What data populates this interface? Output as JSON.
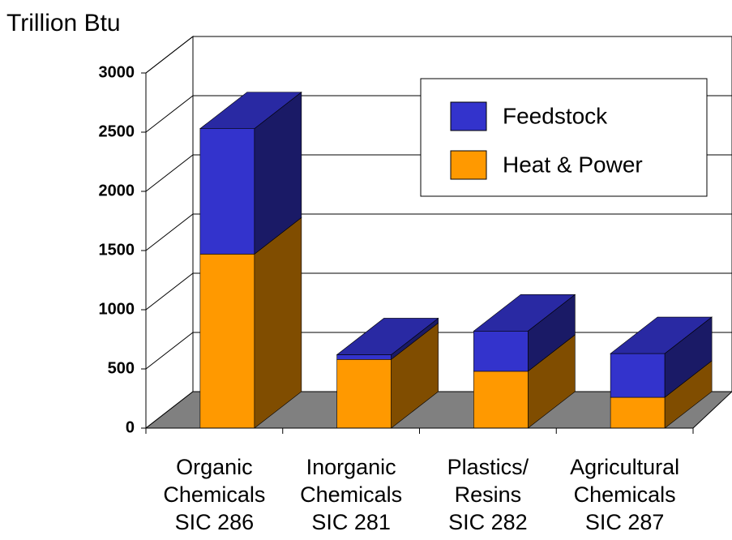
{
  "chart_data": {
    "type": "bar3d_stacked",
    "y_axis_label": "Trillion Btu",
    "categories": [
      [
        "Organic",
        "Chemicals",
        "SIC 286"
      ],
      [
        "Inorganic",
        "Chemicals",
        "SIC 281"
      ],
      [
        "Plastics/",
        "Resins",
        "SIC 282"
      ],
      [
        "Agricultural",
        "Chemicals",
        "SIC 287"
      ]
    ],
    "series": [
      {
        "name": "Heat & Power",
        "color": "#ff9900",
        "values": [
          1470,
          580,
          480,
          260
        ]
      },
      {
        "name": "Feedstock",
        "color": "#3333cc",
        "values": [
          1060,
          40,
          340,
          370
        ]
      }
    ],
    "ylim": [
      0,
      3000
    ],
    "yticks": [
      0,
      500,
      1000,
      1500,
      2000,
      2500,
      3000
    ],
    "grid": true,
    "legend": "upper right"
  }
}
